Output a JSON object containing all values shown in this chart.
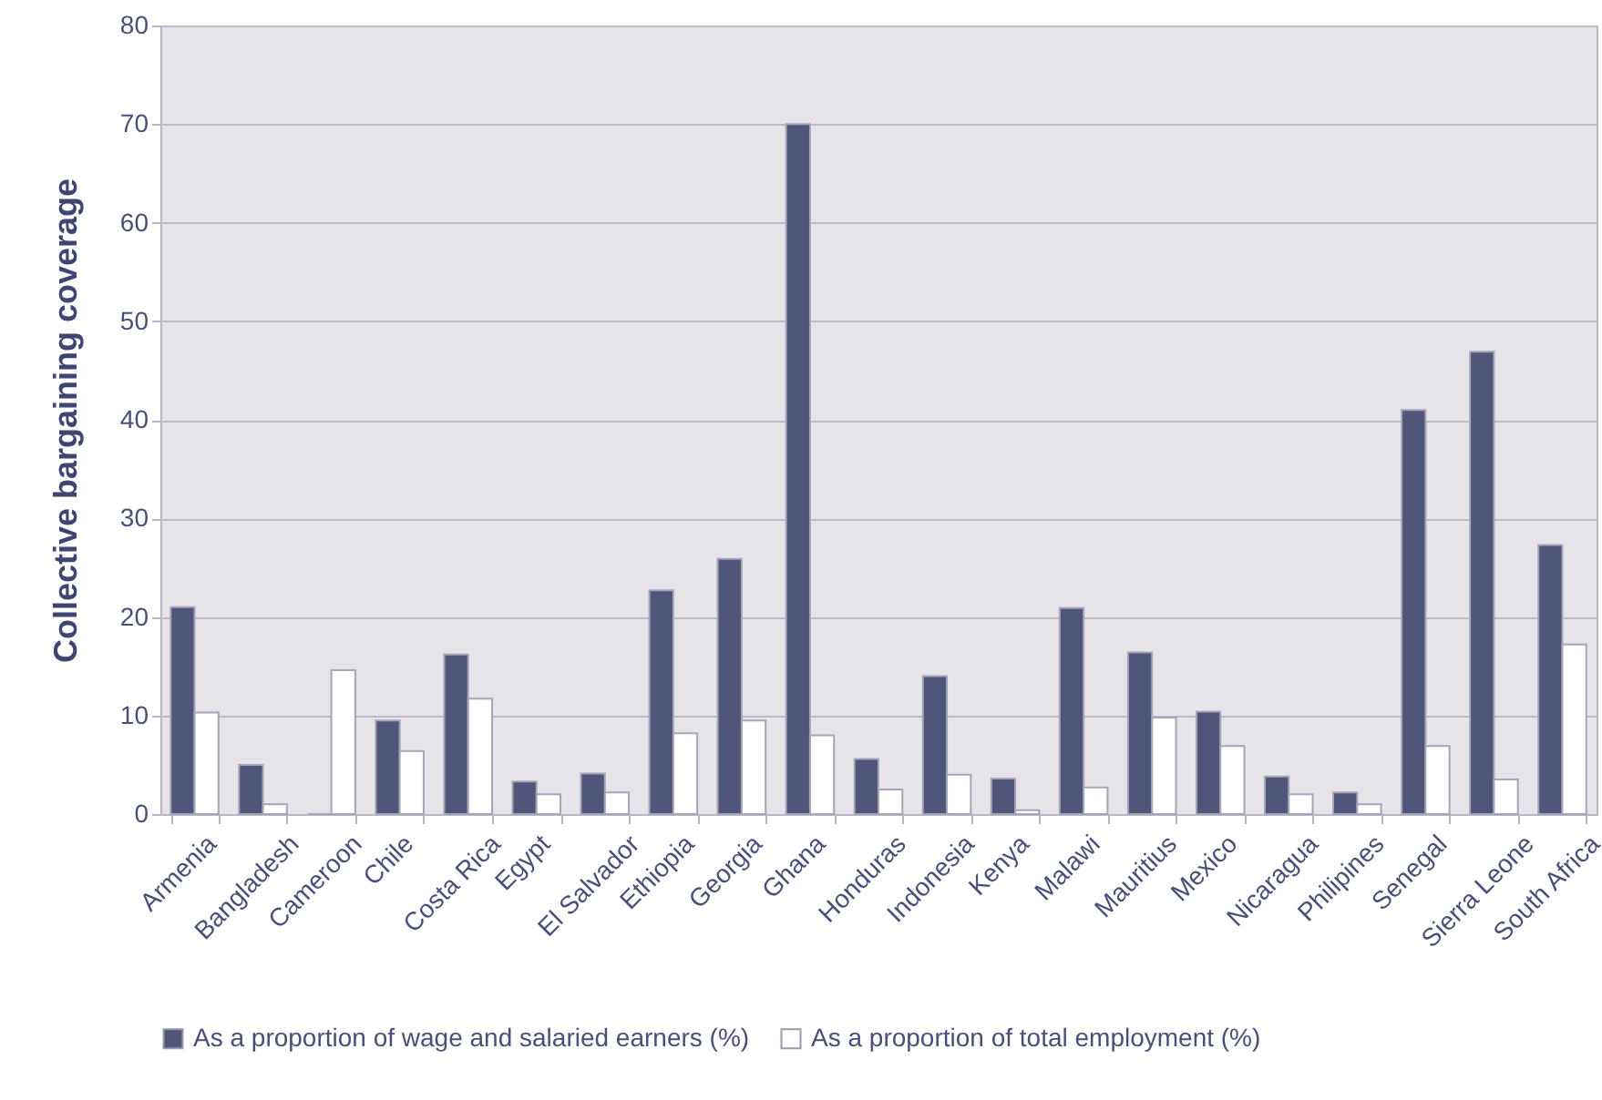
{
  "chart_data": {
    "type": "bar",
    "ylabel": "Collective bargaining coverage",
    "categories": [
      "Armenia",
      "Bangladesh",
      "Cameroon",
      "Chile",
      "Costa Rica",
      "Egypt",
      "El Salvador",
      "Ethiopia",
      "Georgia",
      "Ghana",
      "Honduras",
      "Indonesia",
      "Kenya",
      "Malawi",
      "Mauritius",
      "Mexico",
      "Nicaragua",
      "Philipines",
      "Senegal",
      "Sierra Leone",
      "South Africa"
    ],
    "series": [
      {
        "name": "As a proportion of wage and salaried earners (%)",
        "color": "#50557a",
        "values": [
          21,
          5,
          null,
          9.5,
          16.2,
          3.3,
          4.1,
          22.7,
          25.9,
          70,
          5.6,
          14,
          3.6,
          20.9,
          16.4,
          10.4,
          3.8,
          2.2,
          41,
          46.9,
          27.3
        ]
      },
      {
        "name": "As a proportion of total employment (%)",
        "color": "#ffffff",
        "values": [
          10.3,
          1,
          14.6,
          6.4,
          11.7,
          2,
          2.2,
          8.2,
          9.5,
          8,
          2.5,
          4,
          0.4,
          2.7,
          9.8,
          6.9,
          2,
          1,
          6.9,
          3.5,
          17.2
        ]
      }
    ],
    "ylim": [
      0,
      80
    ],
    "yticks": [
      0,
      10,
      20,
      30,
      40,
      50,
      60,
      70,
      80
    ],
    "grid": "y",
    "legend": "bottom"
  }
}
